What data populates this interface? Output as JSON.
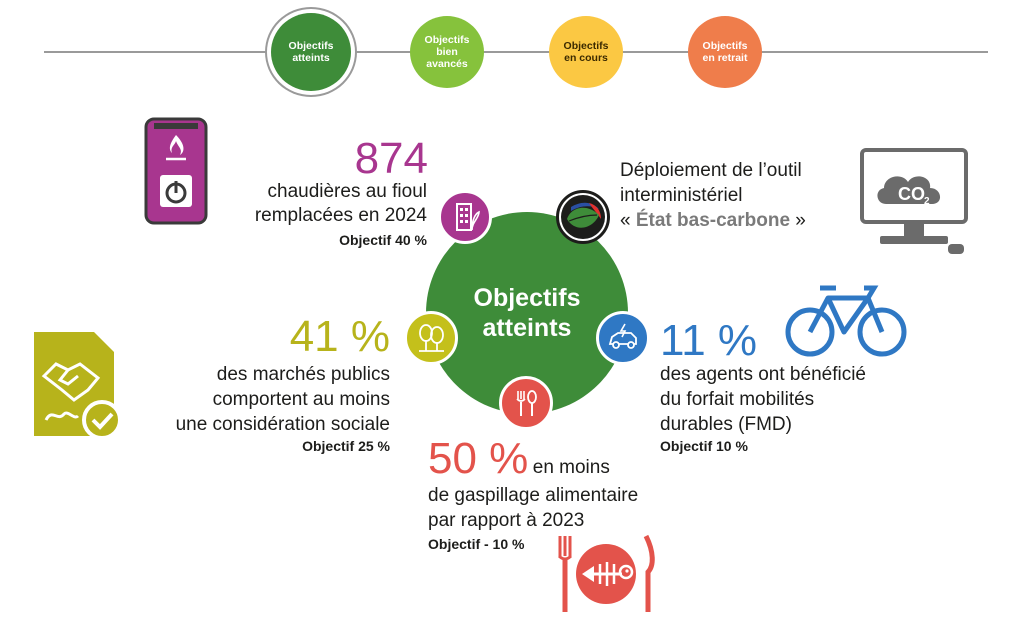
{
  "legend": {
    "items": [
      {
        "label_line1": "Objectifs",
        "label_line2": "atteints",
        "label_line3": "",
        "color": "#3e8c39"
      },
      {
        "label_line1": "Objectifs",
        "label_line2": "bien",
        "label_line3": "avancés",
        "color": "#86c23c"
      },
      {
        "label_line1": "Objectifs",
        "label_line2": "en cours",
        "label_line3": "",
        "color": "#fbc843"
      },
      {
        "label_line1": "Objectifs",
        "label_line2": "en retrait",
        "label_line3": "",
        "color": "#ef7d4b"
      }
    ]
  },
  "center": {
    "line1": "Objectifs",
    "line2": "atteints",
    "color": "#3e8c39"
  },
  "boilers": {
    "value": "874",
    "line1": "chaudières au fioul",
    "line2": "remplacées en 2024",
    "objective": "Objectif 40 %",
    "color": "#a8368f",
    "icon": "boiler-icon"
  },
  "tool": {
    "line1": "Déploiement de l’outil",
    "line2": "interministériel",
    "quote_open": "« ",
    "name": "État bas-carbone",
    "quote_close": " »",
    "icon": "co2-monitor-icon"
  },
  "procurement": {
    "value": "41 %",
    "line1": "des marchés publics",
    "line2": "comportent au moins",
    "line3": "une considération sociale",
    "objective": "Objectif 25 %",
    "color": "#b7b31b",
    "icon": "handshake-document-icon"
  },
  "mobility": {
    "value": "11 %",
    "line1": "des agents ont bénéficié",
    "line2": "du forfait mobilités",
    "line3": "durables (FMD)",
    "objective": "Objectif 10 %",
    "color": "#2f78c4",
    "icon": "bicycle-icon"
  },
  "food": {
    "value": "50 %",
    "line1_suffix": "en moins",
    "line2": "de gaspillage alimentaire",
    "line3": "par rapport à 2023",
    "objective": "Objectif - 10 %",
    "color": "#e3534b",
    "icon": "fish-bone-plate-icon"
  },
  "colors": {
    "dark_green": "#3e8c39",
    "co2_icon": "#6b6b6b"
  }
}
